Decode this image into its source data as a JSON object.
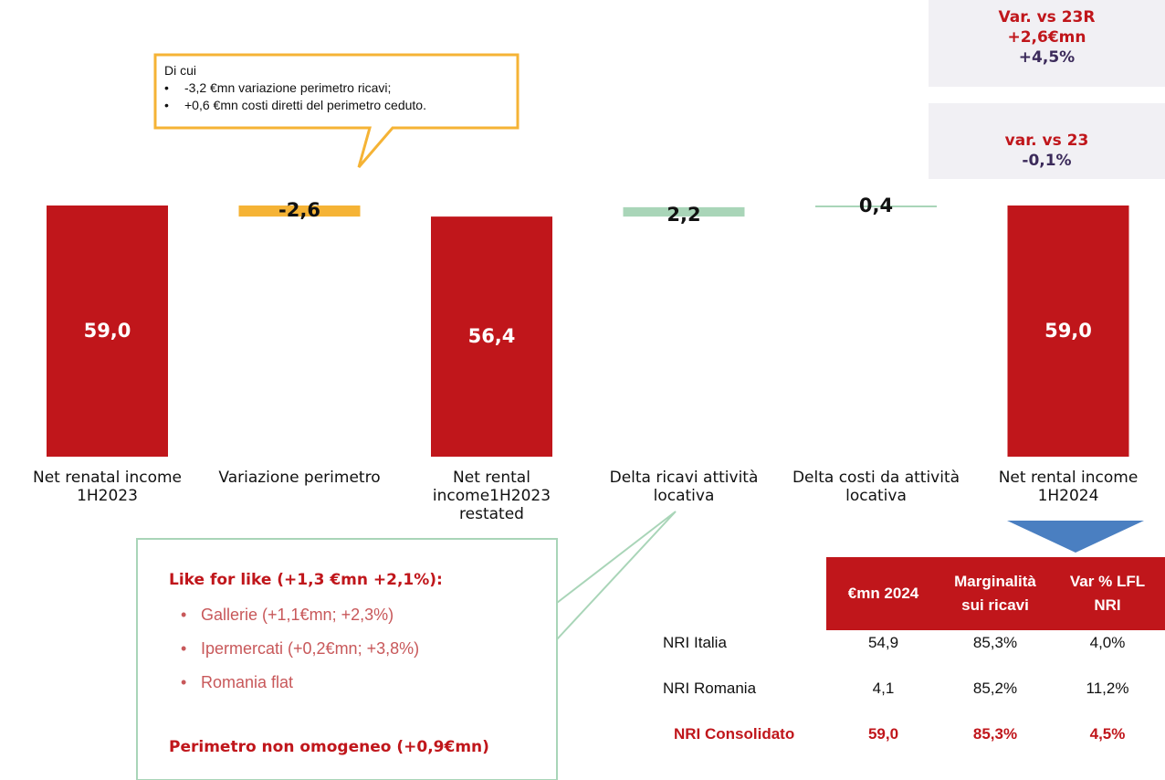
{
  "chart_data": {
    "type": "waterfall",
    "categories": [
      "Net renatal income 1H2023",
      "Variazione perimetro",
      "Net rental income1H2023 restated",
      "Delta ricavi attività locativa",
      "Delta costi da attività locativa",
      "Net rental income 1H2024"
    ],
    "values": [
      59.0,
      -2.6,
      56.4,
      2.2,
      0.4,
      59.0
    ],
    "value_labels": [
      "59,0",
      "-2,6",
      "56,4",
      "2,2",
      "0,4",
      "59,0"
    ],
    "totals": [
      true,
      false,
      true,
      false,
      false,
      true
    ],
    "colors": {
      "total": "#c0161b",
      "decrease": "#f5b335",
      "increase": "#a9d5b8"
    }
  },
  "variance_boxes": [
    {
      "lines": [
        "Var. vs 23R",
        "+2,6€mn",
        "+4,5%"
      ]
    },
    {
      "lines": [
        "var. vs 23",
        "-0,1%"
      ]
    }
  ],
  "note_callout": {
    "title": "Di cui",
    "bullets": [
      "-3,2 €mn variazione perimetro ricavi;",
      "+0,6 €mn costi diretti del perimetro ceduto."
    ]
  },
  "lfl_callout": {
    "heading": "Like for like (+1,3 €mn +2,1%):",
    "bullets": [
      "Gallerie (+1,1€mn; +2,3%)",
      "Ipermercati (+0,2€mn; +3,8%)",
      "Romania flat"
    ],
    "footer": "Perimetro non omogeneo (+0,9€mn)"
  },
  "table": {
    "header": [
      "€mn 2024",
      "Marginalità sui ricavi",
      "Var % LFL NRI"
    ],
    "rows": [
      [
        "NRI Italia",
        "54,9",
        "85,3%",
        "4,0%"
      ],
      [
        "NRI Romania",
        "4,1",
        "85,2%",
        "11,2%"
      ],
      [
        "NRI Consolidato",
        "59,0",
        "85,3%",
        "4,5%"
      ]
    ]
  }
}
